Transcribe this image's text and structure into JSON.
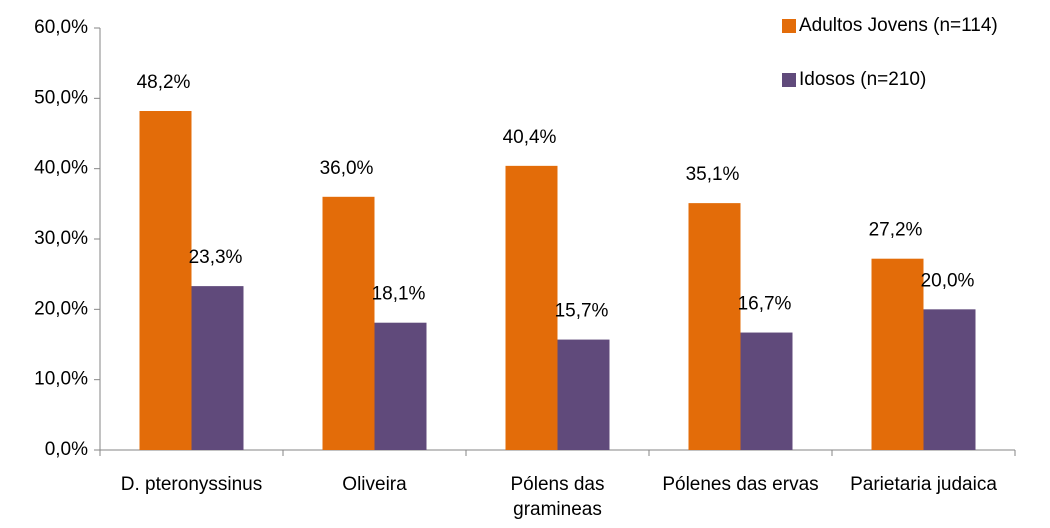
{
  "chart_data": {
    "type": "bar",
    "categories": [
      "D. pteronyssinus",
      "Oliveira",
      "Pólens das gramineas",
      "Pólenes das ervas",
      "Parietaria judaica"
    ],
    "series": [
      {
        "name": "Adultos Jovens (n=114)",
        "color": "#e36c09",
        "values": [
          48.2,
          36.0,
          40.4,
          35.1,
          27.2
        ],
        "value_labels": [
          "48,2%",
          "36,0%",
          "40,4%",
          "35,1%",
          "27,2%"
        ]
      },
      {
        "name": "Idosos (n=210)",
        "color": "#604a7b",
        "values": [
          23.3,
          18.1,
          15.7,
          16.7,
          20.0
        ],
        "value_labels": [
          "23,3%",
          "18,1%",
          "15,7%",
          "16,7%",
          "20,0%"
        ]
      }
    ],
    "ylim": [
      0,
      60
    ],
    "yticks": [
      {
        "value": 0,
        "label": "0,0%"
      },
      {
        "value": 10,
        "label": "10,0%"
      },
      {
        "value": 20,
        "label": "20,0%"
      },
      {
        "value": 30,
        "label": "30,0%"
      },
      {
        "value": 40,
        "label": "40,0%"
      },
      {
        "value": 50,
        "label": "50,0%"
      },
      {
        "value": 60,
        "label": "60,0%"
      }
    ],
    "legend": "top-right"
  }
}
